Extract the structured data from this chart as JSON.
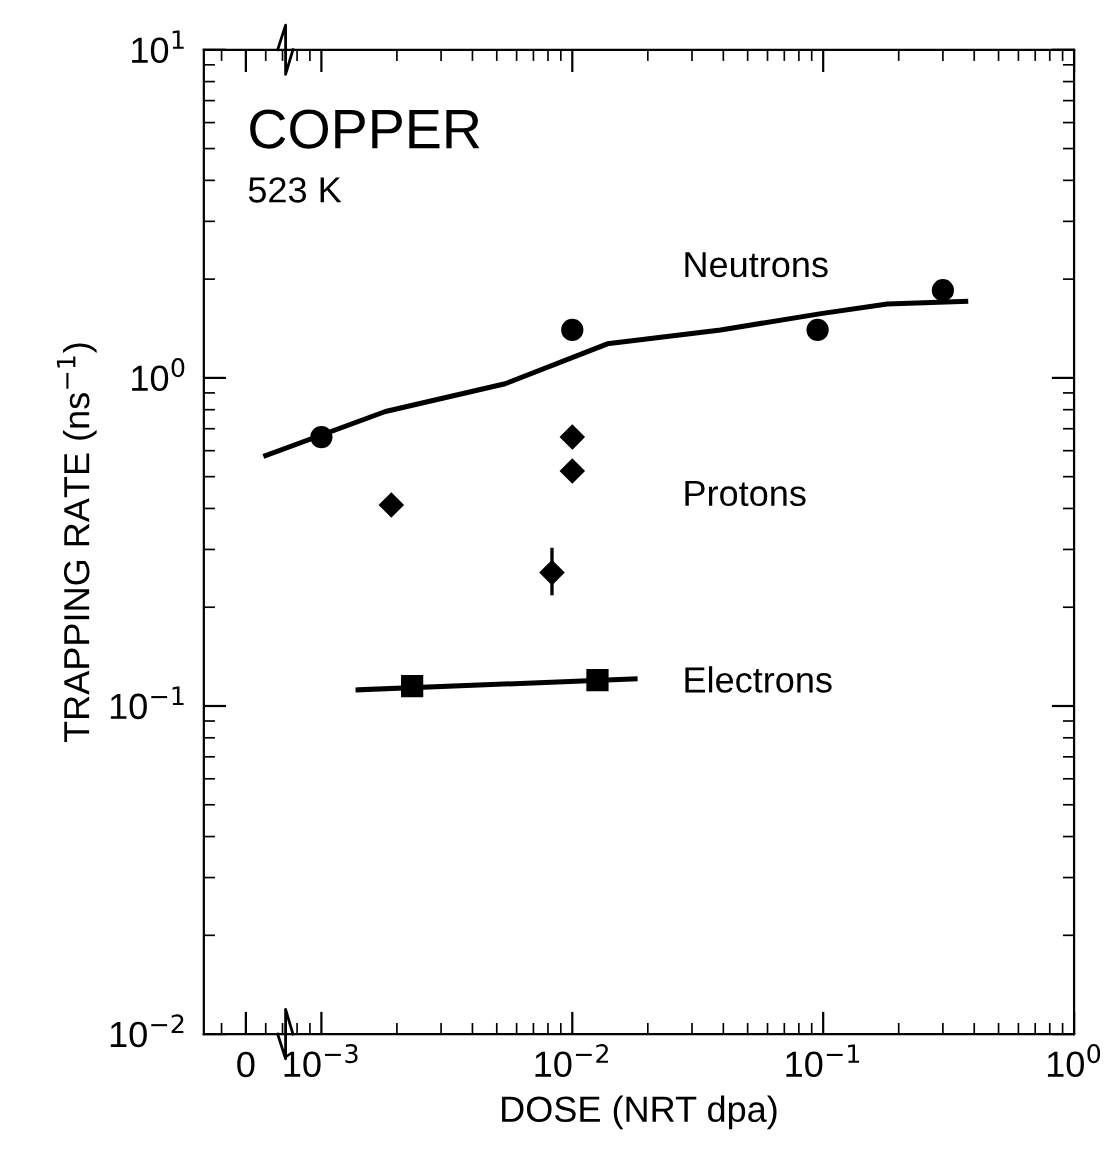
{
  "chart_data": {
    "type": "scatter",
    "title": "COPPER",
    "subtitle": "523 K",
    "xlabel": "DOSE (NRT dpa)",
    "ylabel": "TRAPPING RATE (ns$^{−1}$)",
    "log": "xy",
    "xlim": [
      0.00034,
      1
    ],
    "ylim": [
      0.01,
      10
    ],
    "xticks": [
      {
        "value": 0.0005,
        "label": "0"
      },
      {
        "value": 0.001,
        "label": "10$^{−3}$"
      },
      {
        "value": 0.01,
        "label": "10$^{−2}$"
      },
      {
        "value": 0.1,
        "label": "10$^{−1}$"
      },
      {
        "value": 1,
        "label": "10$^{0}$"
      }
    ],
    "yticks": [
      {
        "value": 0.01,
        "label": "10$^{−2}$"
      },
      {
        "value": 0.1,
        "label": "10$^{−1}$"
      },
      {
        "value": 1,
        "label": "10$^{0}$"
      },
      {
        "value": 10,
        "label": "10$^{1}$"
      }
    ],
    "grid": false,
    "legend": false,
    "series": [
      {
        "name": "Neutrons",
        "marker": "circle",
        "color": "#000000",
        "x": [
          0.001,
          0.01,
          0.095,
          0.3
        ],
        "values": [
          0.66,
          1.4,
          1.4,
          1.85
        ]
      },
      {
        "type": "line",
        "color": "#000000",
        "x": [
          0.0006,
          0.0018,
          0.0054,
          0.0138,
          0.039,
          0.098,
          0.18,
          0.37
        ],
        "values": [
          0.58,
          0.79,
          0.96,
          1.27,
          1.4,
          1.57,
          1.68,
          1.71
        ]
      },
      {
        "name": "Protons",
        "marker": "diamond",
        "color": "#000000",
        "x": [
          0.0019,
          0.01,
          0.01,
          0.0083
        ],
        "values": [
          0.41,
          0.66,
          0.52,
          0.255
        ],
        "errors": [
          null,
          null,
          null,
          [
            0.22,
            0.3
          ]
        ]
      },
      {
        "name": "Electrons",
        "marker": "square",
        "color": "#000000",
        "x": [
          0.0023,
          0.0126
        ],
        "values": [
          0.115,
          0.12
        ]
      },
      {
        "type": "line",
        "color": "#000000",
        "x": [
          0.0014,
          0.0178
        ],
        "values": [
          0.112,
          0.121
        ]
      }
    ]
  }
}
